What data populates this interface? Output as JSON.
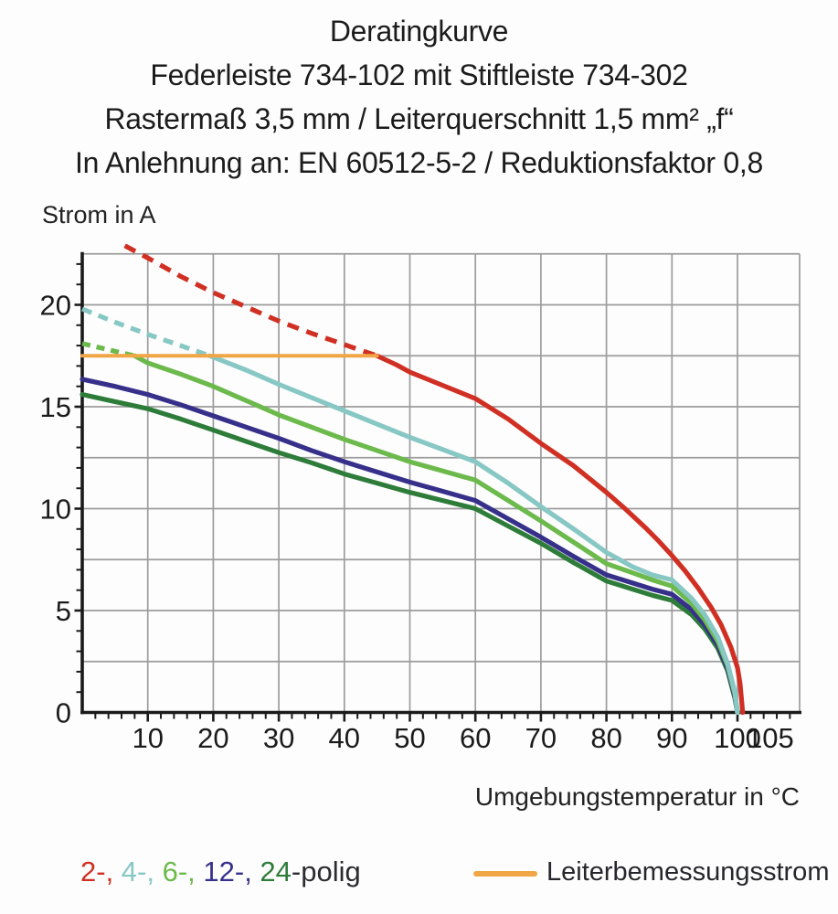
{
  "header": {
    "lines": [
      "Deratingkurve",
      "Federleiste 734-102 mit Stiftleiste 734-302",
      "Rastermaß 3,5 mm / Leiterquerschnitt 1,5 mm² „f“",
      "In Anlehnung an: EN 60512-5-2 / Reduktionsfaktor 0,8"
    ]
  },
  "legend": {
    "poles": {
      "parts": [
        {
          "text": "2-,",
          "color": "#d03023"
        },
        {
          "text": " 4-,",
          "color": "#87c7c4"
        },
        {
          "text": " 6-,",
          "color": "#6cb94c"
        },
        {
          "text": " 12-,",
          "color": "#36308b"
        },
        {
          "text": " 24",
          "color": "#2e7c39"
        },
        {
          "text": "-polig",
          "color": "#2b2b31"
        }
      ]
    },
    "rated": {
      "label": "Leiterbemessungsstrom",
      "color": "#f1a645"
    }
  },
  "chart_data": {
    "type": "line",
    "xlabel": "Umgebungstemperatur in °C",
    "ylabel": "Strom in A",
    "xlim": [
      0,
      109.5
    ],
    "ylim": [
      0,
      22.5
    ],
    "x_tick_labels": [
      10,
      20,
      30,
      40,
      50,
      60,
      70,
      80,
      90,
      100,
      105
    ],
    "y_tick_labels": [
      0,
      5,
      10,
      15,
      20
    ],
    "x_grid_step": 10,
    "y_grid_step": 2.5,
    "x_minor_tick_step": 2,
    "y_minor_tick_step": 1,
    "grid_on": true,
    "grid_color": "#9c9c9c",
    "axis_color": "#1b1b1b",
    "rated_current_A": 17.5,
    "series": [
      {
        "name": "24-polig",
        "color": "#2e7c39",
        "width": 5.2,
        "segments": [
          {
            "style": "solid",
            "points": [
              [
                0,
                15.6
              ],
              [
                5,
                15.25
              ],
              [
                10,
                14.9
              ],
              [
                15,
                14.4
              ],
              [
                20,
                13.85
              ],
              [
                25,
                13.3
              ],
              [
                30,
                12.75
              ],
              [
                35,
                12.25
              ],
              [
                40,
                11.7
              ],
              [
                45,
                11.25
              ],
              [
                50,
                10.8
              ],
              [
                55,
                10.4
              ],
              [
                60,
                10.0
              ],
              [
                65,
                9.15
              ],
              [
                70,
                8.3
              ],
              [
                75,
                7.35
              ],
              [
                80,
                6.45
              ],
              [
                84,
                6.05
              ],
              [
                87,
                5.75
              ],
              [
                90,
                5.5
              ],
              [
                93,
                4.8
              ],
              [
                95,
                4.1
              ],
              [
                97,
                3.15
              ],
              [
                98.5,
                2.05
              ],
              [
                99.6,
                0.7
              ],
              [
                100,
                0
              ]
            ]
          }
        ]
      },
      {
        "name": "12-polig",
        "color": "#36308b",
        "width": 5.2,
        "segments": [
          {
            "style": "solid",
            "points": [
              [
                0,
                16.35
              ],
              [
                5,
                16.0
              ],
              [
                10,
                15.6
              ],
              [
                15,
                15.1
              ],
              [
                20,
                14.55
              ],
              [
                25,
                14.0
              ],
              [
                30,
                13.45
              ],
              [
                35,
                12.85
              ],
              [
                40,
                12.3
              ],
              [
                45,
                11.8
              ],
              [
                50,
                11.3
              ],
              [
                55,
                10.85
              ],
              [
                60,
                10.4
              ],
              [
                65,
                9.5
              ],
              [
                70,
                8.6
              ],
              [
                75,
                7.65
              ],
              [
                80,
                6.75
              ],
              [
                84,
                6.35
              ],
              [
                87,
                6.05
              ],
              [
                90,
                5.8
              ],
              [
                93,
                5.05
              ],
              [
                95,
                4.3
              ],
              [
                97,
                3.3
              ],
              [
                98.5,
                2.15
              ],
              [
                99.6,
                0.8
              ],
              [
                100,
                0
              ]
            ]
          }
        ]
      },
      {
        "name": "6-polig",
        "color": "#6cb94c",
        "width": 5.2,
        "segments": [
          {
            "style": "dashed",
            "points": [
              [
                0,
                18.1
              ],
              [
                4,
                17.8
              ],
              [
                8,
                17.5
              ]
            ]
          },
          {
            "style": "solid",
            "points": [
              [
                8,
                17.5
              ],
              [
                10,
                17.15
              ],
              [
                15,
                16.6
              ],
              [
                20,
                16.0
              ],
              [
                25,
                15.3
              ],
              [
                30,
                14.6
              ],
              [
                35,
                14.0
              ],
              [
                40,
                13.4
              ],
              [
                45,
                12.85
              ],
              [
                50,
                12.3
              ],
              [
                55,
                11.85
              ],
              [
                60,
                11.4
              ],
              [
                65,
                10.4
              ],
              [
                70,
                9.4
              ],
              [
                75,
                8.35
              ],
              [
                80,
                7.3
              ],
              [
                84,
                6.85
              ],
              [
                87,
                6.5
              ],
              [
                90,
                6.2
              ],
              [
                93,
                5.35
              ],
              [
                95,
                4.55
              ],
              [
                97,
                3.5
              ],
              [
                98.5,
                2.3
              ],
              [
                99.6,
                0.9
              ],
              [
                100,
                0
              ]
            ]
          }
        ]
      },
      {
        "name": "4-polig",
        "color": "#87c7c4",
        "width": 5.2,
        "segments": [
          {
            "style": "dashed",
            "points": [
              [
                0,
                19.8
              ],
              [
                5,
                19.15
              ],
              [
                10,
                18.55
              ],
              [
                15,
                18.0
              ],
              [
                19.5,
                17.5
              ]
            ]
          },
          {
            "style": "solid",
            "points": [
              [
                19.5,
                17.5
              ],
              [
                25,
                16.8
              ],
              [
                30,
                16.1
              ],
              [
                35,
                15.45
              ],
              [
                40,
                14.8
              ],
              [
                45,
                14.15
              ],
              [
                50,
                13.5
              ],
              [
                55,
                12.9
              ],
              [
                60,
                12.3
              ],
              [
                65,
                11.25
              ],
              [
                70,
                10.1
              ],
              [
                75,
                9.0
              ],
              [
                80,
                7.85
              ],
              [
                84,
                7.15
              ],
              [
                87,
                6.75
              ],
              [
                90,
                6.5
              ],
              [
                93,
                5.6
              ],
              [
                95,
                4.8
              ],
              [
                97,
                3.7
              ],
              [
                98.5,
                2.4
              ],
              [
                99.6,
                1.0
              ],
              [
                100,
                0
              ]
            ]
          }
        ]
      },
      {
        "name": "2-polig",
        "color": "#d03023",
        "width": 5.2,
        "segments": [
          {
            "style": "dashed",
            "points": [
              [
                6.5,
                22.9
              ],
              [
                10,
                22.3
              ],
              [
                15,
                21.4
              ],
              [
                20,
                20.6
              ],
              [
                25,
                19.9
              ],
              [
                30,
                19.2
              ],
              [
                35,
                18.6
              ],
              [
                40,
                18.05
              ],
              [
                45,
                17.5
              ]
            ]
          },
          {
            "style": "solid",
            "points": [
              [
                45,
                17.5
              ],
              [
                48,
                17.05
              ],
              [
                50,
                16.7
              ],
              [
                55,
                16.05
              ],
              [
                60,
                15.4
              ],
              [
                65,
                14.4
              ],
              [
                70,
                13.2
              ],
              [
                75,
                12.1
              ],
              [
                80,
                10.8
              ],
              [
                83,
                9.95
              ],
              [
                86,
                9.05
              ],
              [
                88,
                8.4
              ],
              [
                90,
                7.7
              ],
              [
                92,
                6.95
              ],
              [
                94,
                6.1
              ],
              [
                96,
                5.15
              ],
              [
                97.5,
                4.3
              ],
              [
                99,
                3.2
              ],
              [
                100,
                2.2
              ],
              [
                100.4,
                1.4
              ],
              [
                100.8,
                0
              ]
            ]
          }
        ]
      },
      {
        "name": "Leiterbemessungsstrom",
        "color": "#f1a645",
        "width": 4,
        "segments": [
          {
            "style": "solid",
            "points": [
              [
                0,
                17.5
              ],
              [
                45,
                17.5
              ]
            ]
          }
        ]
      }
    ]
  }
}
